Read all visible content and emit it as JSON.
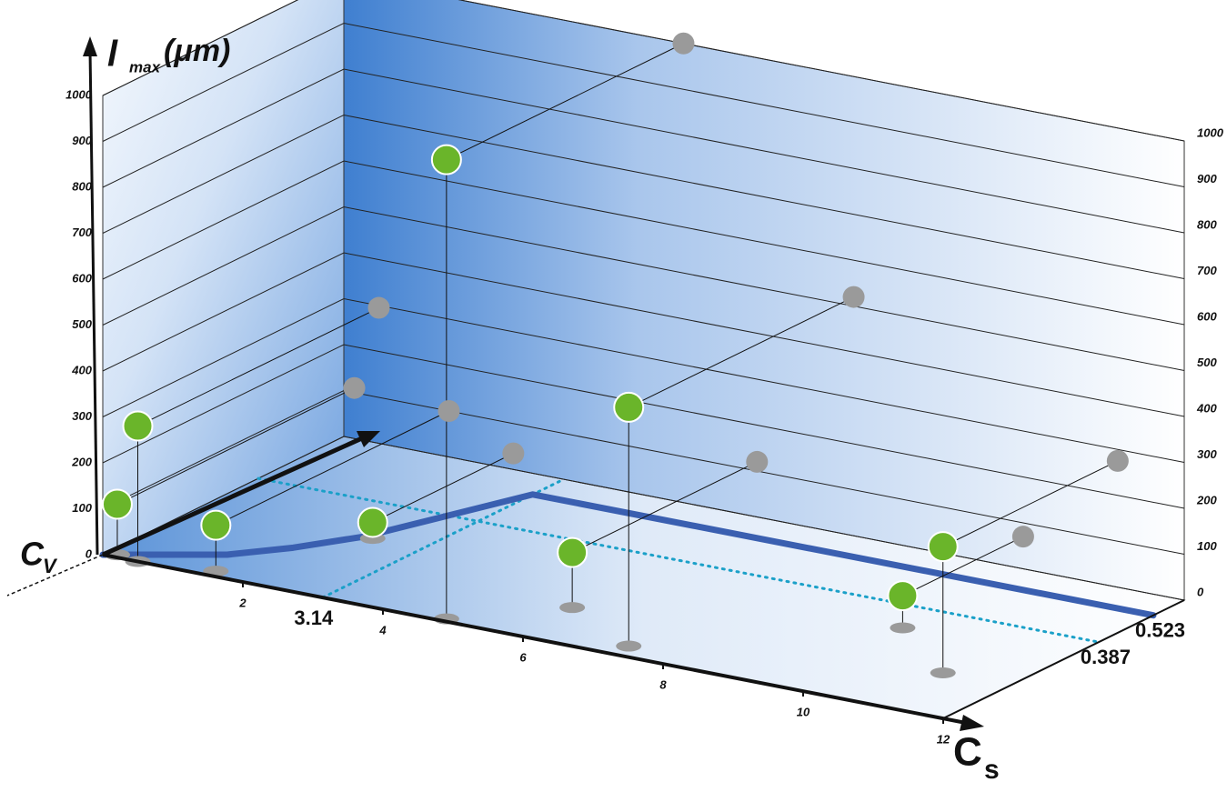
{
  "chart_data": {
    "type": "scatter3d",
    "y_label": "l",
    "y_label_sub": "max",
    "y_label_unit": "(μm)",
    "x_label": "C",
    "x_label_sub": "s",
    "z_label": "C",
    "z_label_sub": "V",
    "xlim": [
      0,
      12
    ],
    "xticks": [
      2,
      4,
      6,
      8,
      10,
      12
    ],
    "ylim": [
      0,
      1000
    ],
    "yticks": [
      0,
      100,
      200,
      300,
      400,
      500,
      600,
      700,
      800,
      900,
      1000
    ],
    "zlim": [
      0,
      0.6
    ],
    "x_reference": 3.14,
    "z_annotations": [
      0.523,
      0.387
    ],
    "curve": {
      "color": "#3a5fb0",
      "x": [
        0,
        1.27,
        1.8,
        2.29,
        3.14,
        12
      ],
      "z": [
        0,
        0.088,
        0.16,
        0.25,
        0.523,
        0.523
      ]
    },
    "points": {
      "color": "#6ab52a",
      "shadow_color": "#9a9a9a",
      "x": [
        4.85,
        7.28,
        5.9,
        11.05,
        9.7,
        2.42,
        0.5,
        1.5,
        0.15
      ],
      "z": [
        0.01,
        0.04,
        0.14,
        0.165,
        0.3,
        0.25,
        0.0,
        0.02,
        0.01
      ],
      "y": [
        1000,
        520,
        120,
        275,
        70,
        35,
        295,
        100,
        110
      ]
    },
    "grid": true
  }
}
